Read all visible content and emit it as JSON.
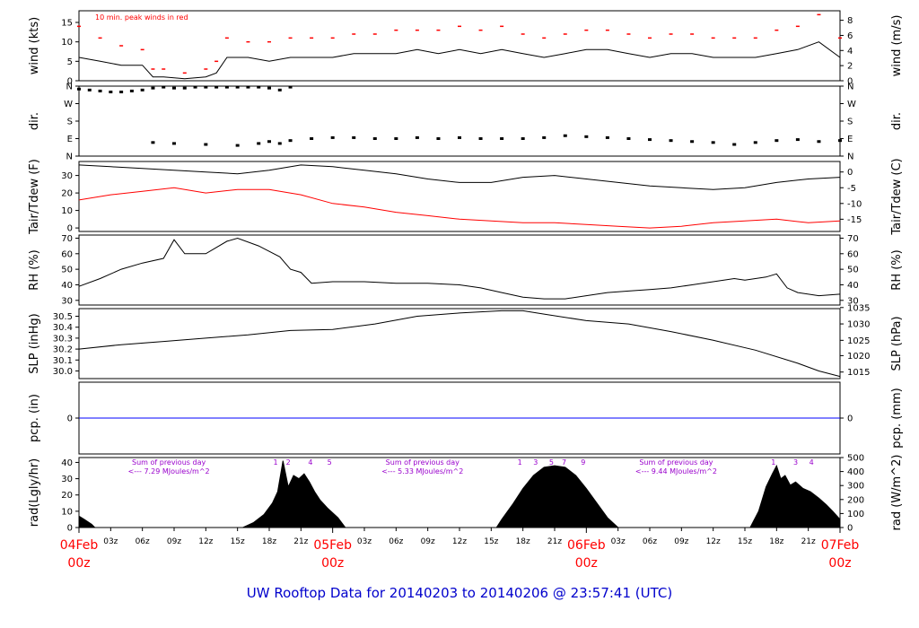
{
  "title": "UW Rooftop Data for 20140203  to  20140206 @ 23:57:41  (UTC)",
  "colors": {
    "title": "#0000cc",
    "date_labels": "#ff0000",
    "peak_wind": "#ff0000",
    "dewpoint": "#ff0000",
    "precip": "#0000ff",
    "rad_notes": "#9900cc",
    "series": "#000000"
  },
  "x_axis": {
    "hours_range": [
      0,
      72
    ],
    "hour_ticks": [
      {
        "h": 3,
        "label": "03z"
      },
      {
        "h": 6,
        "label": "06z"
      },
      {
        "h": 9,
        "label": "09z"
      },
      {
        "h": 12,
        "label": "12z"
      },
      {
        "h": 15,
        "label": "15z"
      },
      {
        "h": 18,
        "label": "18z"
      },
      {
        "h": 21,
        "label": "21z"
      },
      {
        "h": 27,
        "label": "03z"
      },
      {
        "h": 30,
        "label": "06z"
      },
      {
        "h": 33,
        "label": "09z"
      },
      {
        "h": 36,
        "label": "12z"
      },
      {
        "h": 39,
        "label": "15z"
      },
      {
        "h": 42,
        "label": "18z"
      },
      {
        "h": 45,
        "label": "21z"
      },
      {
        "h": 51,
        "label": "03z"
      },
      {
        "h": 54,
        "label": "06z"
      },
      {
        "h": 57,
        "label": "09z"
      },
      {
        "h": 60,
        "label": "12z"
      },
      {
        "h": 63,
        "label": "15z"
      },
      {
        "h": 66,
        "label": "18z"
      },
      {
        "h": 69,
        "label": "21z"
      }
    ],
    "day_labels": [
      {
        "h": 0,
        "date": "04Feb",
        "time": "00z"
      },
      {
        "h": 24,
        "date": "05Feb",
        "time": "00z"
      },
      {
        "h": 48,
        "date": "06Feb",
        "time": "00z"
      },
      {
        "h": 72,
        "date": "07Feb",
        "time": "00z"
      }
    ]
  },
  "chart_data": [
    {
      "type": "line",
      "id": "wind",
      "ylabel": "wind (kts)",
      "ylabel_right": "wind (m/s)",
      "ylim": [
        0,
        18
      ],
      "yticks": [
        0,
        5,
        10,
        15
      ],
      "right_ticks": [
        {
          "v": 0,
          "label": "0"
        },
        {
          "v": 3.89,
          "label": "2"
        },
        {
          "v": 7.78,
          "label": "4"
        },
        {
          "v": 11.66,
          "label": "6"
        },
        {
          "v": 15.55,
          "label": "8"
        }
      ],
      "annotation": "10 min. peak winds in red",
      "series": [
        {
          "key": "speed",
          "color": "#000000",
          "x": [
            0,
            2,
            4,
            6,
            7,
            8,
            10,
            12,
            13,
            14,
            16,
            18,
            20,
            22,
            24,
            26,
            28,
            30,
            32,
            34,
            36,
            38,
            40,
            42,
            44,
            46,
            48,
            50,
            52,
            54,
            56,
            58,
            60,
            62,
            64,
            66,
            68,
            70,
            72
          ],
          "y": [
            6,
            5,
            4,
            4,
            1,
            1,
            0.5,
            1,
            2,
            6,
            6,
            5,
            6,
            6,
            6,
            7,
            7,
            7,
            8,
            7,
            8,
            7,
            8,
            7,
            6,
            7,
            8,
            8,
            7,
            6,
            7,
            7,
            6,
            6,
            6,
            7,
            8,
            10,
            6
          ]
        },
        {
          "key": "peak",
          "color": "#ff0000",
          "x": [
            0,
            2,
            4,
            6,
            7,
            8,
            10,
            12,
            13,
            14,
            16,
            18,
            20,
            22,
            24,
            26,
            28,
            30,
            32,
            34,
            36,
            38,
            40,
            42,
            44,
            46,
            48,
            50,
            52,
            54,
            56,
            58,
            60,
            62,
            64,
            66,
            68,
            70,
            72
          ],
          "y": [
            14,
            11,
            9,
            8,
            3,
            3,
            2,
            3,
            5,
            11,
            10,
            10,
            11,
            11,
            11,
            12,
            12,
            13,
            13,
            13,
            14,
            13,
            14,
            12,
            11,
            12,
            13,
            13,
            12,
            11,
            12,
            12,
            11,
            11,
            11,
            13,
            14,
            17,
            11
          ]
        }
      ]
    },
    {
      "type": "scatter",
      "id": "dir",
      "ylabel": "dir.",
      "ylabel_right": "dir.",
      "ylim": [
        0,
        360
      ],
      "yticks_labels": [
        {
          "v": 0,
          "label": "N"
        },
        {
          "v": 90,
          "label": "E"
        },
        {
          "v": 180,
          "label": "S"
        },
        {
          "v": 270,
          "label": "W"
        },
        {
          "v": 360,
          "label": "N"
        }
      ],
      "series": [
        {
          "key": "north_cluster",
          "color": "#000000",
          "x": [
            0,
            1,
            2,
            3,
            4,
            5,
            6,
            7,
            8,
            9,
            10,
            11,
            12,
            13,
            14,
            15,
            16,
            17,
            18,
            19,
            20
          ],
          "y": [
            345,
            340,
            335,
            330,
            330,
            335,
            340,
            350,
            355,
            350,
            350,
            355,
            355,
            355,
            355,
            355,
            355,
            355,
            350,
            340,
            355
          ]
        },
        {
          "key": "east_band",
          "color": "#000000",
          "x": [
            7,
            9,
            12,
            15,
            17,
            18,
            19,
            20,
            22,
            24,
            26,
            28,
            30,
            32,
            34,
            36,
            38,
            40,
            42,
            44,
            46,
            48,
            50,
            52,
            54,
            56,
            58,
            60,
            62,
            64,
            66,
            68,
            70,
            72
          ],
          "y": [
            70,
            65,
            60,
            55,
            65,
            75,
            65,
            80,
            90,
            95,
            95,
            90,
            90,
            95,
            90,
            95,
            90,
            90,
            90,
            95,
            105,
            100,
            95,
            90,
            85,
            80,
            75,
            70,
            60,
            70,
            80,
            85,
            75,
            80
          ]
        }
      ]
    },
    {
      "type": "line",
      "id": "temp",
      "ylabel": "Tair/Tdew (F)",
      "ylabel_right": "Tair/Tdew (C)",
      "ylim": [
        -2,
        38
      ],
      "yticks": [
        0,
        10,
        20,
        30
      ],
      "right_ticks": [
        {
          "v": 5,
          "label": "-15"
        },
        {
          "v": 14,
          "label": "-10"
        },
        {
          "v": 23,
          "label": "-5"
        },
        {
          "v": 32,
          "label": "0"
        }
      ],
      "series": [
        {
          "key": "tair",
          "color": "#000000",
          "x": [
            0,
            3,
            6,
            9,
            12,
            15,
            18,
            21,
            24,
            27,
            30,
            33,
            36,
            39,
            42,
            45,
            48,
            51,
            54,
            57,
            60,
            63,
            66,
            69,
            72
          ],
          "y": [
            36,
            35,
            34,
            33,
            32,
            31,
            33,
            36,
            35,
            33,
            31,
            28,
            26,
            26,
            29,
            30,
            28,
            26,
            24,
            23,
            22,
            23,
            26,
            28,
            29
          ]
        },
        {
          "key": "tdew",
          "color": "#ff0000",
          "x": [
            0,
            3,
            6,
            9,
            12,
            15,
            18,
            21,
            24,
            27,
            30,
            33,
            36,
            39,
            42,
            45,
            48,
            51,
            54,
            57,
            60,
            63,
            66,
            69,
            72
          ],
          "y": [
            16,
            19,
            21,
            23,
            20,
            22,
            22,
            19,
            14,
            12,
            9,
            7,
            5,
            4,
            3,
            3,
            2,
            1,
            0,
            1,
            3,
            4,
            5,
            3,
            4
          ]
        }
      ]
    },
    {
      "type": "line",
      "id": "rh",
      "ylabel": "RH (%)",
      "ylabel_right": "RH (%)",
      "ylim": [
        27,
        72
      ],
      "yticks": [
        30,
        40,
        50,
        60,
        70
      ],
      "right_ticks": [
        {
          "v": 30,
          "label": "30"
        },
        {
          "v": 40,
          "label": "40"
        },
        {
          "v": 50,
          "label": "50"
        },
        {
          "v": 60,
          "label": "60"
        },
        {
          "v": 70,
          "label": "70"
        }
      ],
      "series": [
        {
          "key": "rh",
          "color": "#000000",
          "x": [
            0,
            2,
            4,
            6,
            8,
            9,
            10,
            12,
            14,
            15,
            17,
            19,
            20,
            21,
            22,
            24,
            27,
            30,
            33,
            36,
            38,
            40,
            42,
            44,
            46,
            48,
            50,
            52,
            54,
            56,
            58,
            60,
            62,
            63,
            65,
            66,
            67,
            68,
            70,
            72
          ],
          "y": [
            39,
            44,
            50,
            54,
            57,
            69,
            60,
            60,
            68,
            70,
            65,
            58,
            50,
            48,
            41,
            42,
            42,
            41,
            41,
            40,
            38,
            35,
            32,
            31,
            31,
            33,
            35,
            36,
            37,
            38,
            40,
            42,
            44,
            43,
            45,
            47,
            38,
            35,
            33,
            34
          ]
        }
      ]
    },
    {
      "type": "line",
      "id": "slp",
      "ylabel": "SLP (inHg)",
      "ylabel_right": "SLP (hPa)",
      "ylim": [
        29.93,
        30.57
      ],
      "yticks": [
        30.0,
        30.1,
        30.2,
        30.3,
        30.4,
        30.5
      ],
      "ytick_labels": [
        "30.0",
        "30.1",
        "30.2",
        "30.3",
        "30.4",
        "30.5"
      ],
      "right_ticks": [
        {
          "v": 29.99,
          "label": "1015"
        },
        {
          "v": 30.14,
          "label": "1020"
        },
        {
          "v": 30.28,
          "label": "1025"
        },
        {
          "v": 30.43,
          "label": "1030"
        },
        {
          "v": 30.58,
          "label": "1035"
        }
      ],
      "series": [
        {
          "key": "slp",
          "color": "#000000",
          "x": [
            0,
            4,
            8,
            12,
            16,
            20,
            24,
            28,
            32,
            36,
            40,
            42,
            44,
            48,
            52,
            56,
            60,
            64,
            68,
            70,
            72
          ],
          "y": [
            30.2,
            30.24,
            30.27,
            30.3,
            30.33,
            30.37,
            30.38,
            30.43,
            30.5,
            30.53,
            30.55,
            30.55,
            30.52,
            30.46,
            30.43,
            30.36,
            30.28,
            30.19,
            30.07,
            30.0,
            29.95
          ]
        }
      ]
    },
    {
      "type": "line",
      "id": "pcp",
      "ylabel": "pcp. (in)",
      "ylabel_right": "pcp. (mm)",
      "ylim": [
        -1,
        1
      ],
      "yticks": [
        0
      ],
      "right_ticks": [
        {
          "v": 0,
          "label": "0"
        }
      ],
      "series": [
        {
          "key": "pcp",
          "color": "#0000ff",
          "x": [
            0,
            72
          ],
          "y": [
            0,
            0
          ]
        }
      ]
    },
    {
      "type": "area",
      "id": "rad",
      "ylabel": "rad(Lgly/hr)",
      "ylabel_right": "rad (W/m^2)",
      "ylim": [
        0,
        43
      ],
      "yticks": [
        0,
        10,
        20,
        30,
        40
      ],
      "right_ticks": [
        {
          "v": 0,
          "label": "0"
        },
        {
          "v": 8.6,
          "label": "100"
        },
        {
          "v": 17.2,
          "label": "200"
        },
        {
          "v": 25.8,
          "label": "300"
        },
        {
          "v": 34.4,
          "label": "400"
        },
        {
          "v": 43,
          "label": "500"
        }
      ],
      "annotations": [
        {
          "h": 8.5,
          "line1": "Sum of previous day",
          "line2": "<--- 7.29 MJoules/m^2"
        },
        {
          "h": 32.5,
          "line1": "Sum of previous day",
          "line2": "<--- 5.33 MJoules/m^2"
        },
        {
          "h": 56.5,
          "line1": "Sum of previous day",
          "line2": "<--- 9.44 MJoules/m^2"
        }
      ],
      "hour_markers": [
        {
          "h": 18.6,
          "label": "1"
        },
        {
          "h": 19.8,
          "label": "2"
        },
        {
          "h": 21.9,
          "label": "4"
        },
        {
          "h": 23.7,
          "label": "5"
        },
        {
          "h": 41.7,
          "label": "1"
        },
        {
          "h": 43.2,
          "label": "3"
        },
        {
          "h": 44.7,
          "label": "5"
        },
        {
          "h": 45.9,
          "label": "7"
        },
        {
          "h": 47.7,
          "label": "9"
        },
        {
          "h": 65.7,
          "label": "1"
        },
        {
          "h": 67.8,
          "label": "3"
        },
        {
          "h": 69.3,
          "label": "4"
        }
      ],
      "series": [
        {
          "key": "rad",
          "color": "#000000",
          "x": [
            0,
            0.5,
            1.2,
            1.5,
            15.5,
            16.5,
            17.5,
            18.3,
            18.8,
            19.3,
            19.8,
            20.3,
            20.8,
            21.3,
            21.8,
            22.3,
            22.8,
            23.5,
            24.5,
            25.2,
            39.5,
            40,
            41,
            42,
            43,
            44,
            45,
            46,
            47,
            48,
            49,
            50,
            51,
            63.5,
            64.3,
            65,
            65.6,
            66,
            66.4,
            66.8,
            67.3,
            67.8,
            68.5,
            69.2,
            70,
            70.7,
            71.3,
            72
          ],
          "y": [
            7,
            5,
            2,
            0,
            0,
            3,
            8,
            15,
            22,
            41,
            25,
            32,
            30,
            33,
            28,
            22,
            17,
            12,
            6,
            0,
            0,
            5,
            14,
            24,
            32,
            37,
            38,
            37,
            32,
            24,
            15,
            6,
            0,
            0,
            10,
            25,
            33,
            38,
            30,
            32,
            26,
            28,
            24,
            22,
            18,
            14,
            10,
            5
          ]
        }
      ]
    }
  ]
}
